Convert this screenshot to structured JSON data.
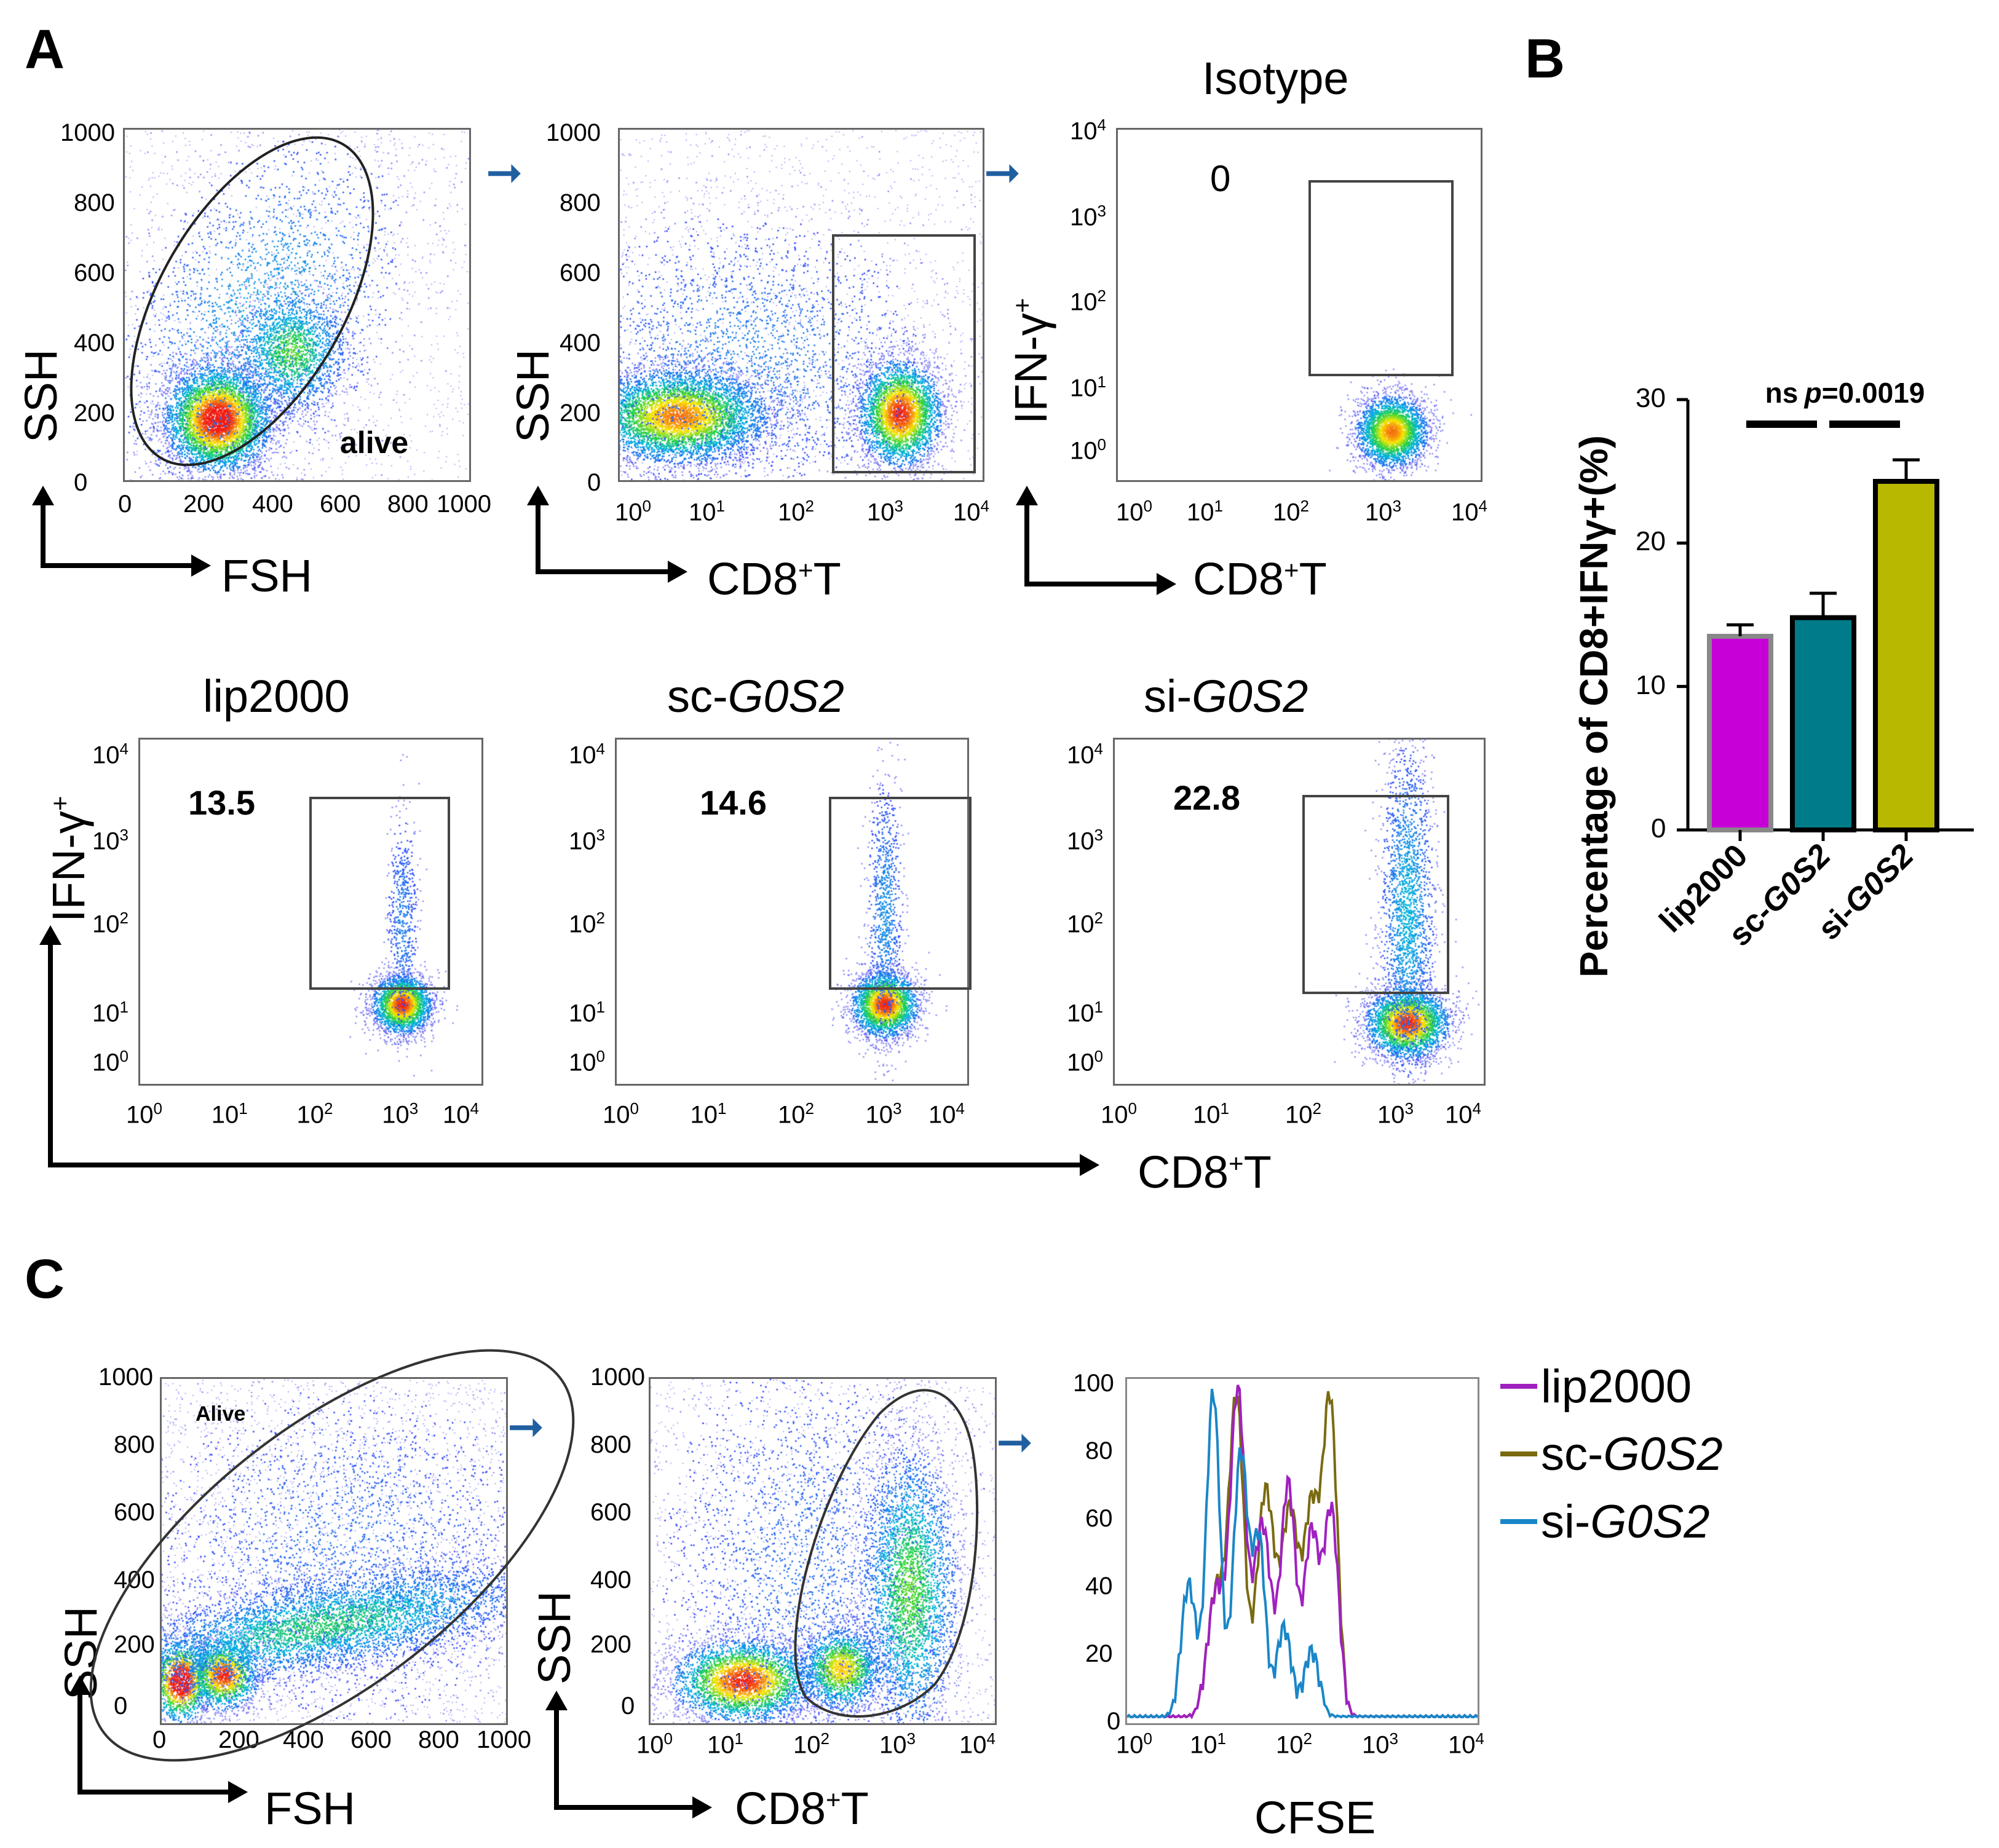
{
  "panels": {
    "A": "A",
    "B": "B",
    "C": "C"
  },
  "panelA": {
    "top": {
      "plot1": {
        "x_label": "FSH",
        "y_label": "SSH",
        "gate_label": "alive",
        "x_ticks": [
          "0",
          "200",
          "400",
          "600",
          "800",
          "1000"
        ],
        "y_ticks": [
          "0",
          "200",
          "400",
          "600",
          "800",
          "1000"
        ]
      },
      "plot2": {
        "x_label": "CD8",
        "x_label_sup": "+",
        "x_label_suffix": "T",
        "y_label": "SSH",
        "x_ticks": [
          "10",
          "10",
          "10",
          "10",
          "10"
        ],
        "x_exps": [
          "0",
          "1",
          "2",
          "3",
          "4"
        ],
        "y_ticks": [
          "0",
          "200",
          "400",
          "600",
          "800",
          "1000"
        ]
      },
      "plot3": {
        "title": "Isotype",
        "value": "0",
        "x_label": "CD8",
        "x_label_sup": "+",
        "x_label_suffix": "T",
        "y_label": "IFN-γ",
        "y_label_sup": "+",
        "x_ticks": [
          "10",
          "10",
          "10",
          "10",
          "10"
        ],
        "x_exps": [
          "0",
          "1",
          "2",
          "3",
          "4"
        ],
        "y_ticks": [
          "10",
          "10",
          "10",
          "10",
          "10"
        ],
        "y_exps": [
          "0",
          "1",
          "2",
          "3",
          "4"
        ]
      }
    },
    "bottom": {
      "y_label": "IFN-γ",
      "y_label_sup": "+",
      "x_label": "CD8",
      "x_label_sup": "+",
      "x_label_suffix": "T",
      "samples": [
        {
          "prefix": "lip2000",
          "italic": "",
          "value": "13.5"
        },
        {
          "prefix": "sc-",
          "italic": "G0S2",
          "value": "14.6"
        },
        {
          "prefix": "si-",
          "italic": "G0S2",
          "value": "22.8"
        }
      ],
      "tick_base": "10",
      "exps": [
        "0",
        "1",
        "2",
        "3",
        "4"
      ]
    }
  },
  "chart_data": {
    "type": "bar",
    "title": "",
    "ylabel": "Percentage of CD8+IFNγ+(%)",
    "categories": [
      "lip2000",
      "sc-G0S2",
      "si-G0S2"
    ],
    "values": [
      13.5,
      14.8,
      24.3
    ],
    "errors": [
      0.8,
      1.7,
      1.5
    ],
    "colors": [
      "#c800d8",
      "#007b8a",
      "#b8b800"
    ],
    "ylim": [
      0,
      30
    ],
    "yticks": [
      "0",
      "10",
      "20",
      "30"
    ],
    "annotations": [
      {
        "between": [
          0,
          1
        ],
        "text": "ns"
      },
      {
        "between": [
          1,
          2
        ],
        "text": "p=0.0019",
        "italic_part": "p"
      }
    ]
  },
  "panelC": {
    "plot1": {
      "gate_label": "Alive",
      "x_label": "FSH",
      "y_label": "SSH",
      "x_ticks": [
        "0",
        "200",
        "400",
        "600",
        "800",
        "1000"
      ],
      "y_ticks": [
        "0",
        "200",
        "400",
        "600",
        "800",
        "1000"
      ]
    },
    "plot2": {
      "x_label": "CD8",
      "x_label_sup": "+",
      "x_label_suffix": "T",
      "y_label": "SSH",
      "x_ticks": [
        "10",
        "10",
        "10",
        "10",
        "10"
      ],
      "x_exps": [
        "0",
        "1",
        "2",
        "3",
        "4"
      ],
      "y_ticks": [
        "0",
        "200",
        "400",
        "600",
        "800",
        "1000"
      ]
    },
    "histogram": {
      "x_label": "CFSE",
      "x_ticks": [
        "10",
        "10",
        "10",
        "10",
        "10"
      ],
      "x_exps": [
        "0",
        "1",
        "2",
        "3",
        "4"
      ],
      "y_ticks": [
        "0",
        "20",
        "40",
        "60",
        "80",
        "100"
      ]
    },
    "legend": [
      {
        "prefix": "lip2000",
        "italic": "",
        "color": "#a020c0"
      },
      {
        "prefix": "sc-",
        "italic": "G0S2",
        "color": "#7a6a10"
      },
      {
        "prefix": "si-",
        "italic": "G0S2",
        "color": "#1a86c8"
      }
    ]
  }
}
